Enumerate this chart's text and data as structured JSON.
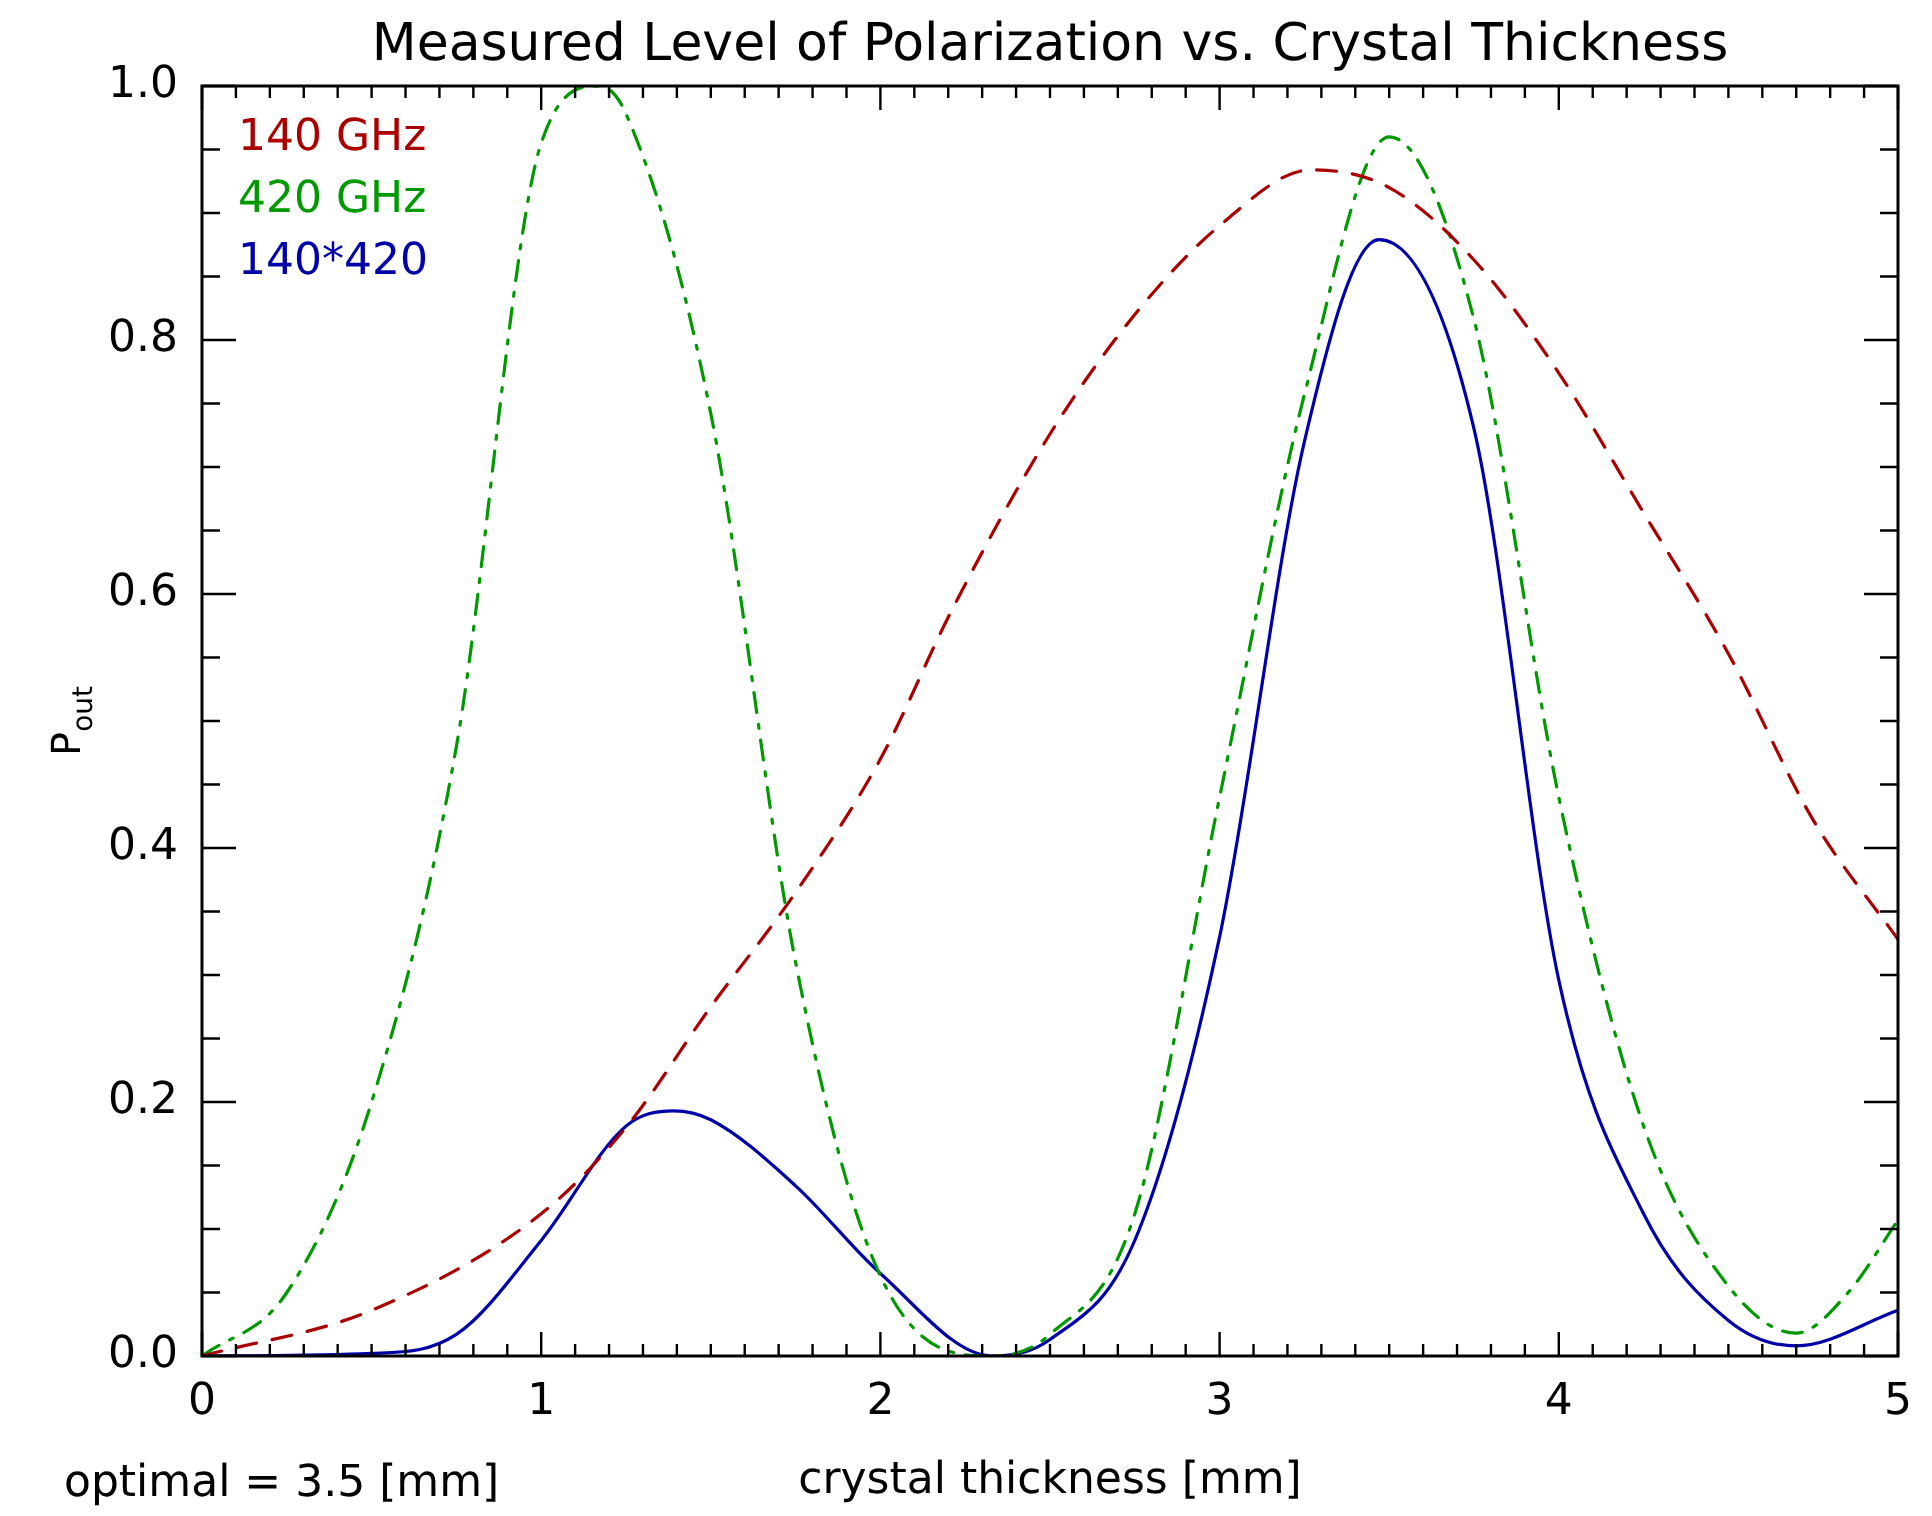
{
  "chart_data": {
    "type": "line",
    "title": "Measured Level of Polarization vs. Crystal Thickness",
    "xlabel": "crystal thickness [mm]",
    "ylabel": "P$_{out}$",
    "annotations": [
      "optimal = 3.5 [mm]"
    ],
    "xlim": [
      0,
      5
    ],
    "xticks": [
      0,
      1,
      2,
      3,
      4,
      5
    ],
    "ylim": [
      0,
      1
    ],
    "yticks": [
      {
        "value": 0,
        "label": "0.0"
      },
      {
        "value": 0.2,
        "label": "0.2"
      },
      {
        "value": 0.4,
        "label": "0.4"
      },
      {
        "value": 0.6,
        "label": "0.6"
      },
      {
        "value": 0.8,
        "label": "0.8"
      },
      {
        "value": 1,
        "label": "1.0"
      }
    ],
    "grid": false,
    "legend": "top left",
    "marker": "none",
    "series": [
      {
        "name": "140 GHz",
        "color": "#aa0000",
        "line_style": "dashed",
        "x": [
          0,
          0.5,
          1,
          1.25,
          1.5,
          1.75,
          2,
          2.21,
          2.5,
          2.75,
          3,
          3.27,
          3.5,
          3.75,
          4,
          4.25,
          4.5,
          4.75,
          5
        ],
        "values": [
          0,
          0.036,
          0.112,
          0.18,
          0.275,
          0.365,
          0.47,
          0.587,
          0.726,
          0.82,
          0.89,
          0.934,
          0.92,
          0.863,
          0.774,
          0.664,
          0.553,
          0.422,
          0.328
        ]
      },
      {
        "name": "420 GHz",
        "color": "#009900",
        "line_style": "dashdot",
        "x": [
          0,
          0.25,
          0.5,
          0.75,
          1,
          1.17,
          1.25,
          1.5,
          1.75,
          2,
          2.33,
          2.5,
          2.75,
          3,
          3.25,
          3.5,
          3.75,
          4,
          4.25,
          4.5,
          4.7,
          4.85,
          5
        ],
        "values": [
          0,
          0.05,
          0.2,
          0.48,
          0.955,
          1,
          0.978,
          0.742,
          0.31,
          0.063,
          0,
          0.017,
          0.112,
          0.44,
          0.757,
          0.96,
          0.816,
          0.44,
          0.181,
          0.055,
          0.018,
          0.049,
          0.107
        ]
      },
      {
        "name": "140*420",
        "color": "#0000aa",
        "line_style": "solid",
        "x": [
          0,
          0.5,
          0.75,
          1,
          1.25,
          1.39,
          1.5,
          1.75,
          2,
          2.33,
          2.5,
          2.75,
          3,
          3.25,
          3.47,
          3.75,
          4,
          4.25,
          4.5,
          4.7,
          5
        ],
        "values": [
          0,
          0.002,
          0.017,
          0.091,
          0.181,
          0.193,
          0.186,
          0.134,
          0.065,
          0,
          0.013,
          0.091,
          0.33,
          0.72,
          0.879,
          0.73,
          0.296,
          0.112,
          0.028,
          0.008,
          0.036
        ]
      }
    ]
  }
}
